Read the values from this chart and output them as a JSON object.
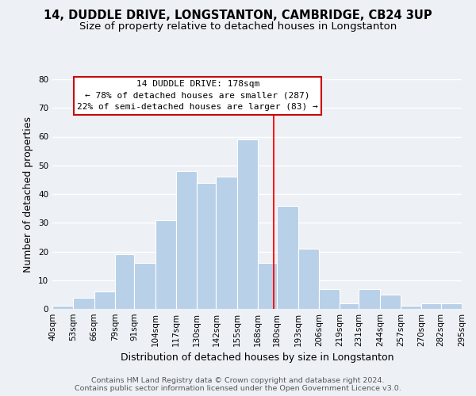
{
  "title": "14, DUDDLE DRIVE, LONGSTANTON, CAMBRIDGE, CB24 3UP",
  "subtitle": "Size of property relative to detached houses in Longstanton",
  "xlabel": "Distribution of detached houses by size in Longstanton",
  "ylabel": "Number of detached properties",
  "bar_values": [
    1,
    4,
    6,
    19,
    16,
    31,
    48,
    44,
    46,
    59,
    16,
    36,
    21,
    7,
    2,
    7,
    5,
    1,
    2,
    2
  ],
  "bin_edges": [
    40,
    53,
    66,
    79,
    91,
    104,
    117,
    130,
    142,
    155,
    168,
    180,
    193,
    206,
    219,
    231,
    244,
    257,
    270,
    282,
    295
  ],
  "bar_color": "#b8d0e8",
  "bar_edge_color": "#ffffff",
  "bar_edge_width": 0.8,
  "red_line_x": 178,
  "ylim": [
    0,
    80
  ],
  "yticks": [
    0,
    10,
    20,
    30,
    40,
    50,
    60,
    70,
    80
  ],
  "xtick_labels": [
    "40sqm",
    "53sqm",
    "66sqm",
    "79sqm",
    "91sqm",
    "104sqm",
    "117sqm",
    "130sqm",
    "142sqm",
    "155sqm",
    "168sqm",
    "180sqm",
    "193sqm",
    "206sqm",
    "219sqm",
    "231sqm",
    "244sqm",
    "257sqm",
    "270sqm",
    "282sqm",
    "295sqm"
  ],
  "annotation_title": "14 DUDDLE DRIVE: 178sqm",
  "annotation_line1": "← 78% of detached houses are smaller (287)",
  "annotation_line2": "22% of semi-detached houses are larger (83) →",
  "footer1": "Contains HM Land Registry data © Crown copyright and database right 2024.",
  "footer2": "Contains public sector information licensed under the Open Government Licence v3.0.",
  "background_color": "#edf1f6",
  "grid_color": "#ffffff",
  "title_fontsize": 10.5,
  "subtitle_fontsize": 9.5,
  "axis_label_fontsize": 9,
  "tick_fontsize": 7.5,
  "footer_fontsize": 6.8,
  "annot_fontsize": 8.0
}
